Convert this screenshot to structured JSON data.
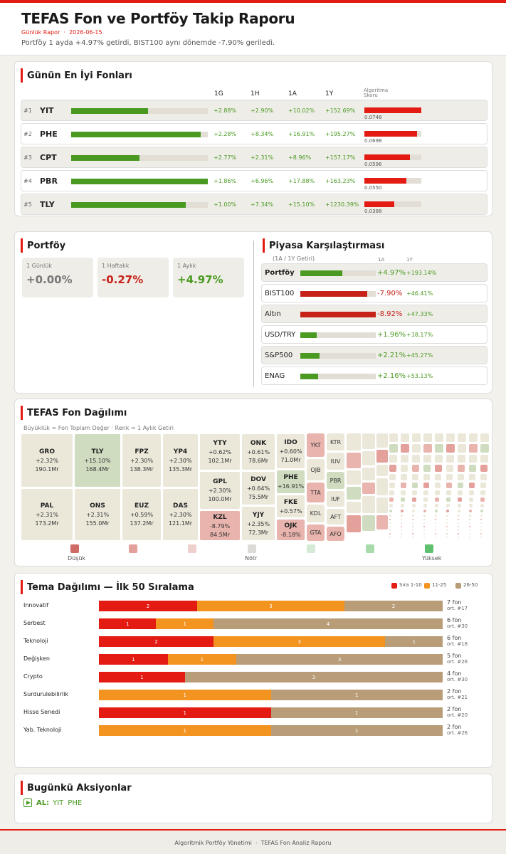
{
  "header": {
    "title": "TEFAS Fon ve Portföy Takip Raporu",
    "subtitle_label": "Günlük Rapor",
    "subtitle_sep": "·",
    "date": "2026-06-15",
    "summary": "Portföy 1 ayda +4.97% getirdi, BIST100 aynı dönemde -7.90% geriledi."
  },
  "top_funds": {
    "title": "Günün En İyi Fonları",
    "columns": [
      "1G",
      "1H",
      "1A",
      "1Y"
    ],
    "score_header": [
      "Algoritma",
      "Skoru"
    ],
    "rows": [
      {
        "rank": "#1",
        "code": "YIT",
        "progress": 0.56,
        "r1": "+2.88%",
        "r2": "+2.90%",
        "r3": "+10.02%",
        "r4": "+152.69%",
        "score": "0.0748",
        "score_frac": 1.0
      },
      {
        "rank": "#2",
        "code": "PHE",
        "progress": 0.95,
        "r1": "+2.28%",
        "r2": "+8.34%",
        "r3": "+16.91%",
        "r4": "+195.27%",
        "score": "0.0698",
        "score_frac": 0.93
      },
      {
        "rank": "#3",
        "code": "CPT",
        "progress": 0.5,
        "r1": "+2.77%",
        "r2": "+2.31%",
        "r3": "+8.96%",
        "r4": "+157.17%",
        "score": "0.0596",
        "score_frac": 0.8
      },
      {
        "rank": "#4",
        "code": "PBR",
        "progress": 1.0,
        "r1": "+1.86%",
        "r2": "+6.96%",
        "r3": "+17.88%",
        "r4": "+163.23%",
        "score": "0.0550",
        "score_frac": 0.74
      },
      {
        "rank": "#5",
        "code": "TLY",
        "progress": 0.84,
        "r1": "+1.00%",
        "r2": "+7.34%",
        "r3": "+15.10%",
        "r4": "+1230.39%",
        "score": "0.0388",
        "score_frac": 0.52
      }
    ]
  },
  "portfolio": {
    "title": "Portföy",
    "stats": [
      {
        "label": "1 Günlük",
        "value": "+0.00%",
        "tone": "neutral"
      },
      {
        "label": "1 Haftalık",
        "value": "-0.27%",
        "tone": "neg"
      },
      {
        "label": "1 Aylık",
        "value": "+4.97%",
        "tone": "pos"
      }
    ]
  },
  "market": {
    "title": "Piyasa Karşılaştırması",
    "note": "(1A / 1Y Getiri)",
    "col1": "1A",
    "col2": "1Y",
    "rows": [
      {
        "name": "Portföy",
        "v1": "+4.97%",
        "v2": "+193.14%",
        "frac": 0.56,
        "neg": false,
        "bold": true
      },
      {
        "name": "BIST100",
        "v1": "-7.90%",
        "v2": "+46.41%",
        "frac": 0.89,
        "neg": true,
        "bold": false
      },
      {
        "name": "Altın",
        "v1": "-8.92%",
        "v2": "+47.33%",
        "frac": 1.0,
        "neg": true,
        "bold": false
      },
      {
        "name": "USD/TRY",
        "v1": "+1.96%",
        "v2": "+18.17%",
        "frac": 0.22,
        "neg": false,
        "bold": false
      },
      {
        "name": "S&P500",
        "v1": "+2.21%",
        "v2": "+45.27%",
        "frac": 0.25,
        "neg": false,
        "bold": false
      },
      {
        "name": "ENAG",
        "v1": "+2.16%",
        "v2": "+53.13%",
        "frac": 0.24,
        "neg": false,
        "bold": false
      }
    ]
  },
  "distribution": {
    "title": "TEFAS Fon Dağılımı",
    "legend_note": "Büyüklük = Fon Toplam Değer  ·  Renk = 1 Aylık Getiri",
    "big_tiles": [
      {
        "code": "GRO",
        "pct": "+2.32%",
        "val": "190.1Mr",
        "color": "#ebe8da"
      },
      {
        "code": "TLY",
        "pct": "+15.10%",
        "val": "168.4Mr",
        "color": "#cfdcc0"
      },
      {
        "code": "FPZ",
        "pct": "+2.30%",
        "val": "138.3Mr",
        "color": "#ebe8da"
      },
      {
        "code": "YP4",
        "pct": "+2.30%",
        "val": "135.3Mr",
        "color": "#ebe8da"
      },
      {
        "code": "PAL",
        "pct": "+2.31%",
        "val": "173.2Mr",
        "color": "#ebe8da"
      },
      {
        "code": "ONS",
        "pct": "+2.31%",
        "val": "155.0Mr",
        "color": "#ebe8da"
      },
      {
        "code": "EUZ",
        "pct": "+0.59%",
        "val": "137.2Mr",
        "color": "#ebe8da"
      },
      {
        "code": "DAS",
        "pct": "+2.30%",
        "val": "121.1Mr",
        "color": "#ebe8da"
      },
      {
        "code": "YTY",
        "pct": "+0.62%",
        "val": "102.1Mr",
        "color": "#ebe8da"
      },
      {
        "code": "GPL",
        "pct": "+2.30%",
        "val": "100.0Mr",
        "color": "#ebe8da"
      },
      {
        "code": "KZL",
        "pct": "-8.79%",
        "val": "84.5Mr",
        "color": "#e8b4ad"
      },
      {
        "code": "ONK",
        "pct": "+0.61%",
        "val": "78.6Mr",
        "color": "#ebe8da"
      },
      {
        "code": "DOV",
        "pct": "+0.64%",
        "val": "75.5Mr",
        "color": "#ebe8da"
      },
      {
        "code": "YJY",
        "pct": "+2.35%",
        "val": "72.3Mr",
        "color": "#ebe8da"
      },
      {
        "code": "IDO",
        "pct": "+0.60%",
        "val": "71.0Mr",
        "color": "#ebe8da"
      },
      {
        "code": "PHE",
        "pct": "+16.91%",
        "val": "",
        "color": "#cfdcc0"
      },
      {
        "code": "FKE",
        "pct": "+0.57%",
        "val": "",
        "color": "#ebe8da"
      },
      {
        "code": "OJK",
        "pct": "-8.18%",
        "val": "",
        "color": "#e8b4ad"
      }
    ],
    "small_tiles": [
      {
        "code": "YKT",
        "color": "#e8b4ad"
      },
      {
        "code": "OJB",
        "color": "#ebe8da"
      },
      {
        "code": "TTA",
        "color": "#e8b4ad"
      },
      {
        "code": "KDL",
        "color": "#ebe8da"
      },
      {
        "code": "GTA",
        "color": "#e8b4ad"
      },
      {
        "code": "KTR",
        "color": "#ebe8da"
      },
      {
        "code": "IUV",
        "color": "#ebe8da"
      },
      {
        "code": "PBR",
        "color": "#cfdcc0"
      },
      {
        "code": "IUF",
        "color": "#ebe8da"
      },
      {
        "code": "AFT",
        "color": "#ebe8da"
      },
      {
        "code": "AFO",
        "color": "#e8b4ad"
      }
    ],
    "legend": [
      {
        "label": "Düşük",
        "color": "#d06a64"
      },
      {
        "label": "",
        "color": "#e4a19b"
      },
      {
        "label": "",
        "color": "#eed1cd"
      },
      {
        "label": "Nötr",
        "color": "#dcdbd8"
      },
      {
        "label": "",
        "color": "#d5ead5"
      },
      {
        "label": "",
        "color": "#a7dbaa"
      },
      {
        "label": "Yüksek",
        "color": "#5fc16e"
      }
    ]
  },
  "themes": {
    "title": "Tema Dağılımı — İlk 50 Sıralama",
    "legend": [
      {
        "label": "Sıra 1-10",
        "color": "#e31b12"
      },
      {
        "label": "11-25",
        "color": "#f39420"
      },
      {
        "label": "26-50",
        "color": "#b89d78"
      }
    ],
    "rows": [
      {
        "name": "Innovatif",
        "segs": [
          2,
          3,
          2
        ],
        "count": "7 fon",
        "avg": "ort. #17"
      },
      {
        "name": "Serbest",
        "segs": [
          1,
          1,
          4
        ],
        "count": "6 fon",
        "avg": "ort. #30"
      },
      {
        "name": "Teknoloji",
        "segs": [
          2,
          3,
          1
        ],
        "count": "6 fon",
        "avg": "ort. #18"
      },
      {
        "name": "Değişken",
        "segs": [
          1,
          1,
          3
        ],
        "count": "5 fon",
        "avg": "ort. #26"
      },
      {
        "name": "Crypto",
        "segs": [
          1,
          0,
          3
        ],
        "count": "4 fon",
        "avg": "ort. #30"
      },
      {
        "name": "Surdurulebilirlik",
        "segs": [
          0,
          1,
          1
        ],
        "count": "2 fon",
        "avg": "ort. #21"
      },
      {
        "name": "Hisse Senedi",
        "segs": [
          1,
          0,
          1
        ],
        "count": "2 fon",
        "avg": "ort. #20"
      },
      {
        "name": "Yab. Teknoloji",
        "segs": [
          0,
          1,
          1
        ],
        "count": "2 fon",
        "avg": "ort. #26"
      }
    ]
  },
  "actions": {
    "title": "Bugünkü Aksiyonlar",
    "label": "AL:",
    "funds": [
      "YIT",
      "PHE"
    ]
  },
  "footer": {
    "left": "Algoritmik Portföy Yönetimi",
    "sep": "·",
    "right": "TEFAS Fon Analiz Raporu"
  }
}
